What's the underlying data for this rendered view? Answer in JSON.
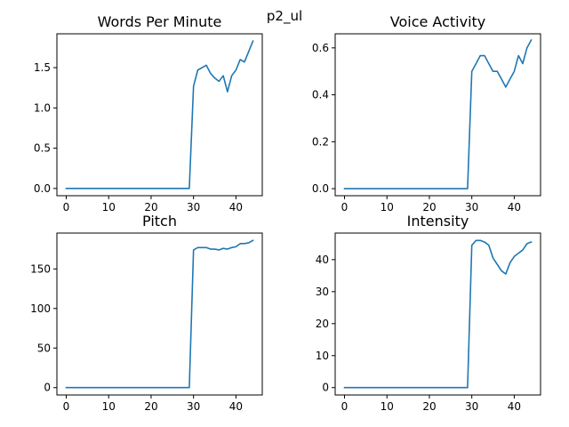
{
  "figure": {
    "suptitle": "p2_ul"
  },
  "chart_data": [
    {
      "type": "line",
      "title": "Words Per Minute",
      "xlim": [
        -2.2,
        46.2
      ],
      "ylim": [
        -0.09,
        1.92
      ],
      "xticks": [
        0,
        10,
        20,
        30,
        40
      ],
      "yticks": [
        0.0,
        0.5,
        1.0,
        1.5
      ],
      "ytick_labels": [
        "0.0",
        "0.5",
        "1.0",
        "1.5"
      ],
      "line_color": "#1f77b4",
      "x": [
        0,
        1,
        2,
        3,
        4,
        5,
        6,
        7,
        8,
        9,
        10,
        11,
        12,
        13,
        14,
        15,
        16,
        17,
        18,
        19,
        20,
        21,
        22,
        23,
        24,
        25,
        26,
        27,
        28,
        29,
        30,
        31,
        32,
        33,
        34,
        35,
        36,
        37,
        38,
        39,
        40,
        41,
        42,
        43,
        44
      ],
      "values": [
        0,
        0,
        0,
        0,
        0,
        0,
        0,
        0,
        0,
        0,
        0,
        0,
        0,
        0,
        0,
        0,
        0,
        0,
        0,
        0,
        0,
        0,
        0,
        0,
        0,
        0,
        0,
        0,
        0,
        0,
        1.27,
        1.47,
        1.5,
        1.53,
        1.43,
        1.37,
        1.33,
        1.4,
        1.2,
        1.4,
        1.47,
        1.6,
        1.57,
        1.7,
        1.83
      ]
    },
    {
      "type": "line",
      "title": "Voice Activity",
      "xlim": [
        -2.2,
        46.2
      ],
      "ylim": [
        -0.03,
        0.66
      ],
      "xticks": [
        0,
        10,
        20,
        30,
        40
      ],
      "yticks": [
        0.0,
        0.2,
        0.4,
        0.6
      ],
      "ytick_labels": [
        "0.0",
        "0.2",
        "0.4",
        "0.6"
      ],
      "line_color": "#1f77b4",
      "x": [
        0,
        1,
        2,
        3,
        4,
        5,
        6,
        7,
        8,
        9,
        10,
        11,
        12,
        13,
        14,
        15,
        16,
        17,
        18,
        19,
        20,
        21,
        22,
        23,
        24,
        25,
        26,
        27,
        28,
        29,
        30,
        31,
        32,
        33,
        34,
        35,
        36,
        37,
        38,
        39,
        40,
        41,
        42,
        43,
        44
      ],
      "values": [
        0,
        0,
        0,
        0,
        0,
        0,
        0,
        0,
        0,
        0,
        0,
        0,
        0,
        0,
        0,
        0,
        0,
        0,
        0,
        0,
        0,
        0,
        0,
        0,
        0,
        0,
        0,
        0,
        0,
        0,
        0.5,
        0.533,
        0.567,
        0.567,
        0.533,
        0.5,
        0.5,
        0.467,
        0.433,
        0.467,
        0.5,
        0.567,
        0.533,
        0.6,
        0.633
      ]
    },
    {
      "type": "line",
      "title": "Pitch",
      "xlim": [
        -2.2,
        46.2
      ],
      "ylim": [
        -9.3,
        195.3
      ],
      "xticks": [
        0,
        10,
        20,
        30,
        40
      ],
      "yticks": [
        0,
        50,
        100,
        150
      ],
      "ytick_labels": [
        "0",
        "50",
        "100",
        "150"
      ],
      "line_color": "#1f77b4",
      "x": [
        0,
        1,
        2,
        3,
        4,
        5,
        6,
        7,
        8,
        9,
        10,
        11,
        12,
        13,
        14,
        15,
        16,
        17,
        18,
        19,
        20,
        21,
        22,
        23,
        24,
        25,
        26,
        27,
        28,
        29,
        30,
        31,
        32,
        33,
        34,
        35,
        36,
        37,
        38,
        39,
        40,
        41,
        42,
        43,
        44
      ],
      "values": [
        0,
        0,
        0,
        0,
        0,
        0,
        0,
        0,
        0,
        0,
        0,
        0,
        0,
        0,
        0,
        0,
        0,
        0,
        0,
        0,
        0,
        0,
        0,
        0,
        0,
        0,
        0,
        0,
        0,
        0,
        174,
        177,
        177,
        177,
        175,
        175,
        174,
        176,
        175,
        177,
        178,
        182,
        182,
        183,
        186
      ]
    },
    {
      "type": "line",
      "title": "Intensity",
      "xlim": [
        -2.2,
        46.2
      ],
      "ylim": [
        -2.3,
        48.3
      ],
      "xticks": [
        0,
        10,
        20,
        30,
        40
      ],
      "yticks": [
        0,
        10,
        20,
        30,
        40
      ],
      "ytick_labels": [
        "0",
        "10",
        "20",
        "30",
        "40"
      ],
      "line_color": "#1f77b4",
      "x": [
        0,
        1,
        2,
        3,
        4,
        5,
        6,
        7,
        8,
        9,
        10,
        11,
        12,
        13,
        14,
        15,
        16,
        17,
        18,
        19,
        20,
        21,
        22,
        23,
        24,
        25,
        26,
        27,
        28,
        29,
        30,
        31,
        32,
        33,
        34,
        35,
        36,
        37,
        38,
        39,
        40,
        41,
        42,
        43,
        44
      ],
      "values": [
        0,
        0,
        0,
        0,
        0,
        0,
        0,
        0,
        0,
        0,
        0,
        0,
        0,
        0,
        0,
        0,
        0,
        0,
        0,
        0,
        0,
        0,
        0,
        0,
        0,
        0,
        0,
        0,
        0,
        0,
        44.5,
        46.0,
        46.0,
        45.5,
        44.5,
        40.5,
        38.5,
        36.5,
        35.5,
        39.0,
        41.0,
        42.0,
        43.0,
        45.0,
        45.5
      ]
    }
  ]
}
